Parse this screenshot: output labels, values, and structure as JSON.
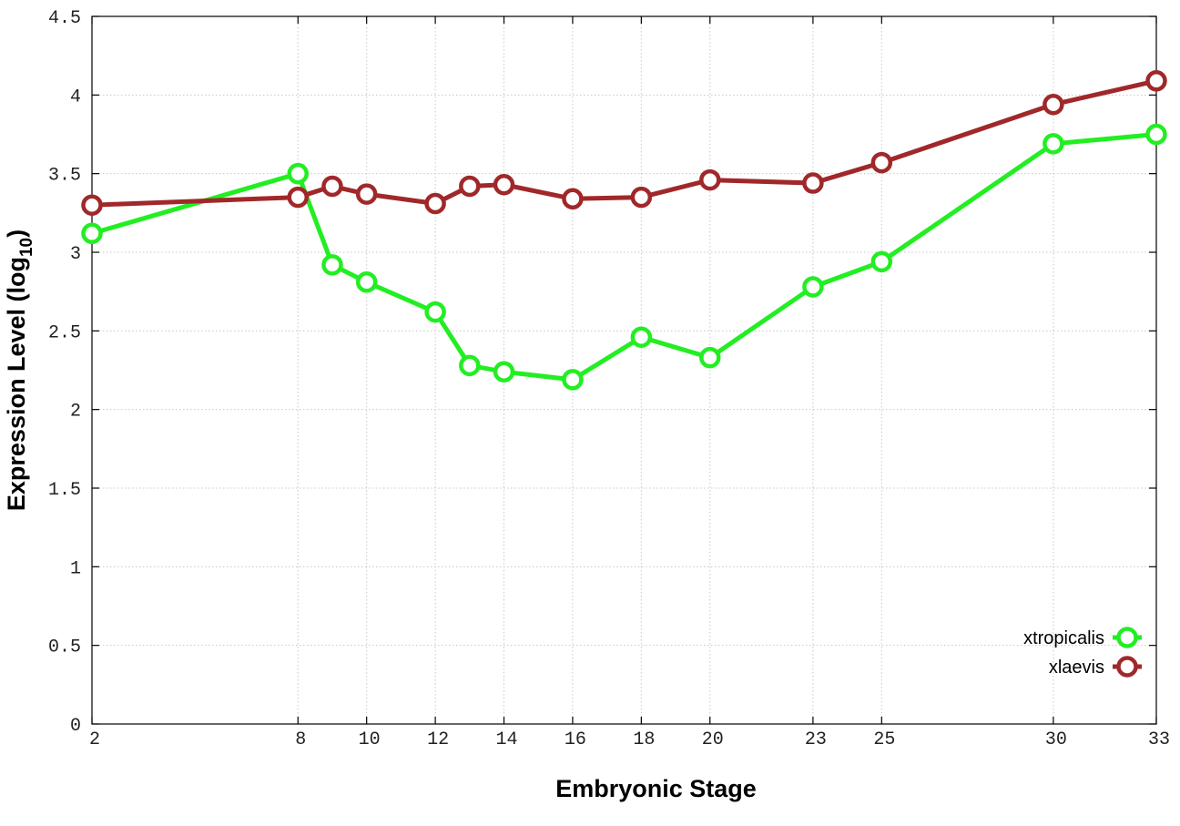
{
  "chart_data": {
    "type": "line",
    "xlabel": "Embryonic Stage",
    "ylabel_main": "Expression Level (log",
    "ylabel_sub": "10",
    "ylabel_close": ")",
    "xlim": [
      2,
      33
    ],
    "ylim": [
      0,
      4.5
    ],
    "x_ticks": [
      2,
      8,
      10,
      12,
      14,
      16,
      18,
      20,
      23,
      25,
      30,
      33
    ],
    "x_tick_labels": [
      "2",
      "8",
      "10",
      "12",
      "14",
      "16",
      "18",
      "20",
      "23",
      "25",
      "30",
      "33"
    ],
    "y_ticks": [
      0,
      0.5,
      1,
      1.5,
      2,
      2.5,
      3,
      3.5,
      4,
      4.5
    ],
    "y_tick_labels": [
      "0",
      "0.5",
      "1",
      "1.5",
      "2",
      "2.5",
      "3",
      "3.5",
      "4",
      "4.5"
    ],
    "grid": true,
    "legend_position": "bottom-right",
    "x": [
      2,
      8,
      9,
      10,
      12,
      13,
      14,
      16,
      18,
      20,
      23,
      25,
      30,
      33
    ],
    "series": [
      {
        "name": "xtropicalis",
        "color": "#22ee22",
        "values": [
          3.12,
          3.5,
          2.92,
          2.81,
          2.62,
          2.28,
          2.24,
          2.19,
          2.46,
          2.33,
          2.78,
          2.94,
          3.69,
          3.75
        ]
      },
      {
        "name": "xlaevis",
        "color": "#a0282a",
        "values": [
          3.3,
          3.35,
          3.42,
          3.37,
          3.31,
          3.42,
          3.43,
          3.34,
          3.35,
          3.46,
          3.44,
          3.57,
          3.94,
          4.09
        ]
      }
    ]
  }
}
